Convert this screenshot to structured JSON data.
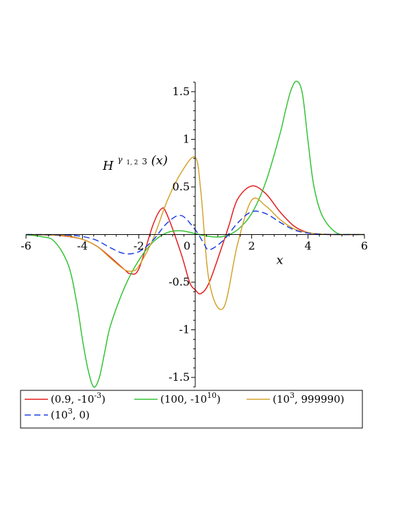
{
  "chart_data": {
    "type": "line",
    "xlabel": "x",
    "ylabel": {
      "main": "H",
      "sup": "γ",
      "sup_sub": "1, 2",
      "sub": "3",
      "arg": "(x)"
    },
    "xlim": [
      -6,
      6
    ],
    "ylim": [
      -1.6,
      1.6
    ],
    "xticks": [
      -6,
      -4,
      -2,
      0,
      2,
      4,
      6
    ],
    "xtick_labels": [
      "-6",
      "-4",
      "-2",
      "0",
      "2",
      "4",
      "6"
    ],
    "yticks": [
      -1.5,
      -1,
      -0.5,
      0.5,
      1,
      1.5
    ],
    "ytick_labels": [
      "-1.5",
      "-1",
      "-0.5",
      "0.5",
      "1",
      "1.5"
    ],
    "grid": false,
    "legend_position": "bottom",
    "series": [
      {
        "name": "(0.9, -10^-3)",
        "label": {
          "a": "(0.9, -10",
          "sup": "-3",
          "b": ")"
        },
        "color": "#e41a1c",
        "dash": "solid",
        "x": [
          -6,
          -5.5,
          -5,
          -4.5,
          -4,
          -3.5,
          -3,
          -2.5,
          -2.3,
          -2,
          -1.5,
          -1.2,
          -1,
          -0.5,
          -0.2,
          0,
          0.2,
          0.5,
          1,
          1.2,
          1.5,
          2,
          2.5,
          3,
          3.5,
          4,
          4.5,
          5,
          5.5,
          6
        ],
        "y": [
          -0.001,
          -0.003,
          -0.006,
          -0.02,
          -0.05,
          -0.12,
          -0.24,
          -0.37,
          -0.41,
          -0.36,
          0.1,
          0.27,
          0.21,
          -0.2,
          -0.5,
          -0.58,
          -0.62,
          -0.5,
          -0.08,
          0.1,
          0.37,
          0.51,
          0.43,
          0.24,
          0.09,
          0.02,
          0.004,
          0.001,
          0,
          0
        ]
      },
      {
        "name": "(100, -10^10)",
        "label": {
          "a": "(100, -10",
          "sup": "10",
          "b": ")"
        },
        "color": "#33c233",
        "dash": "solid",
        "x": [
          -6,
          -5.5,
          -5,
          -4.5,
          -4.2,
          -4,
          -3.8,
          -3.6,
          -3.4,
          -3.2,
          -3,
          -2.5,
          -2,
          -1.5,
          -1,
          -0.5,
          0,
          0.5,
          1,
          1.5,
          2,
          2.5,
          3,
          3.2,
          3.4,
          3.6,
          3.8,
          4,
          4.2,
          4.5,
          5,
          5.5,
          6
        ],
        "y": [
          -0.003,
          -0.02,
          -0.07,
          -0.32,
          -0.72,
          -1.1,
          -1.42,
          -1.6,
          -1.5,
          -1.22,
          -0.95,
          -0.55,
          -0.27,
          -0.08,
          0.02,
          0.04,
          0.01,
          -0.02,
          -0.02,
          0.05,
          0.22,
          0.55,
          1.05,
          1.3,
          1.52,
          1.61,
          1.48,
          0.98,
          0.52,
          0.2,
          0.02,
          0.002,
          0
        ]
      },
      {
        "name": "(10^3, 999990)",
        "label": {
          "a": "(10",
          "sup": "3",
          "b": ", 999990)"
        },
        "color": "#d4a22a",
        "dash": "solid",
        "x": [
          -6,
          -5.5,
          -5,
          -4.5,
          -4,
          -3.5,
          -3,
          -2.5,
          -2.2,
          -2,
          -1.5,
          -1,
          -0.5,
          0,
          0.2,
          0.5,
          1,
          1.5,
          2,
          2.5,
          3,
          3.5,
          4,
          4.5,
          5,
          5.5,
          6
        ],
        "y": [
          0,
          -0.002,
          -0.005,
          -0.015,
          -0.05,
          -0.12,
          -0.25,
          -0.37,
          -0.38,
          -0.33,
          -0.05,
          0.35,
          0.65,
          0.81,
          0.45,
          -0.5,
          -0.77,
          -0.1,
          0.36,
          0.3,
          0.16,
          0.06,
          0.02,
          0.005,
          0.001,
          0,
          0
        ]
      },
      {
        "name": "(10^3, 0)",
        "label": {
          "a": "(10",
          "sup": "3",
          "b": ", 0)"
        },
        "color": "#1a3ee6",
        "dash": "dashed",
        "x": [
          -6,
          -5.5,
          -5,
          -4.5,
          -4,
          -3.5,
          -3,
          -2.5,
          -2,
          -1.5,
          -1,
          -0.5,
          0,
          0.3,
          0.5,
          1,
          1.5,
          2,
          2.5,
          3,
          3.5,
          4,
          4.5,
          5,
          5.5,
          6
        ],
        "y": [
          0,
          0,
          -0.002,
          -0.005,
          -0.02,
          -0.06,
          -0.14,
          -0.2,
          -0.18,
          -0.06,
          0.12,
          0.2,
          0.05,
          -0.09,
          -0.16,
          -0.06,
          0.12,
          0.24,
          0.22,
          0.13,
          0.05,
          0.015,
          0.003,
          0.001,
          0,
          0
        ]
      }
    ]
  }
}
